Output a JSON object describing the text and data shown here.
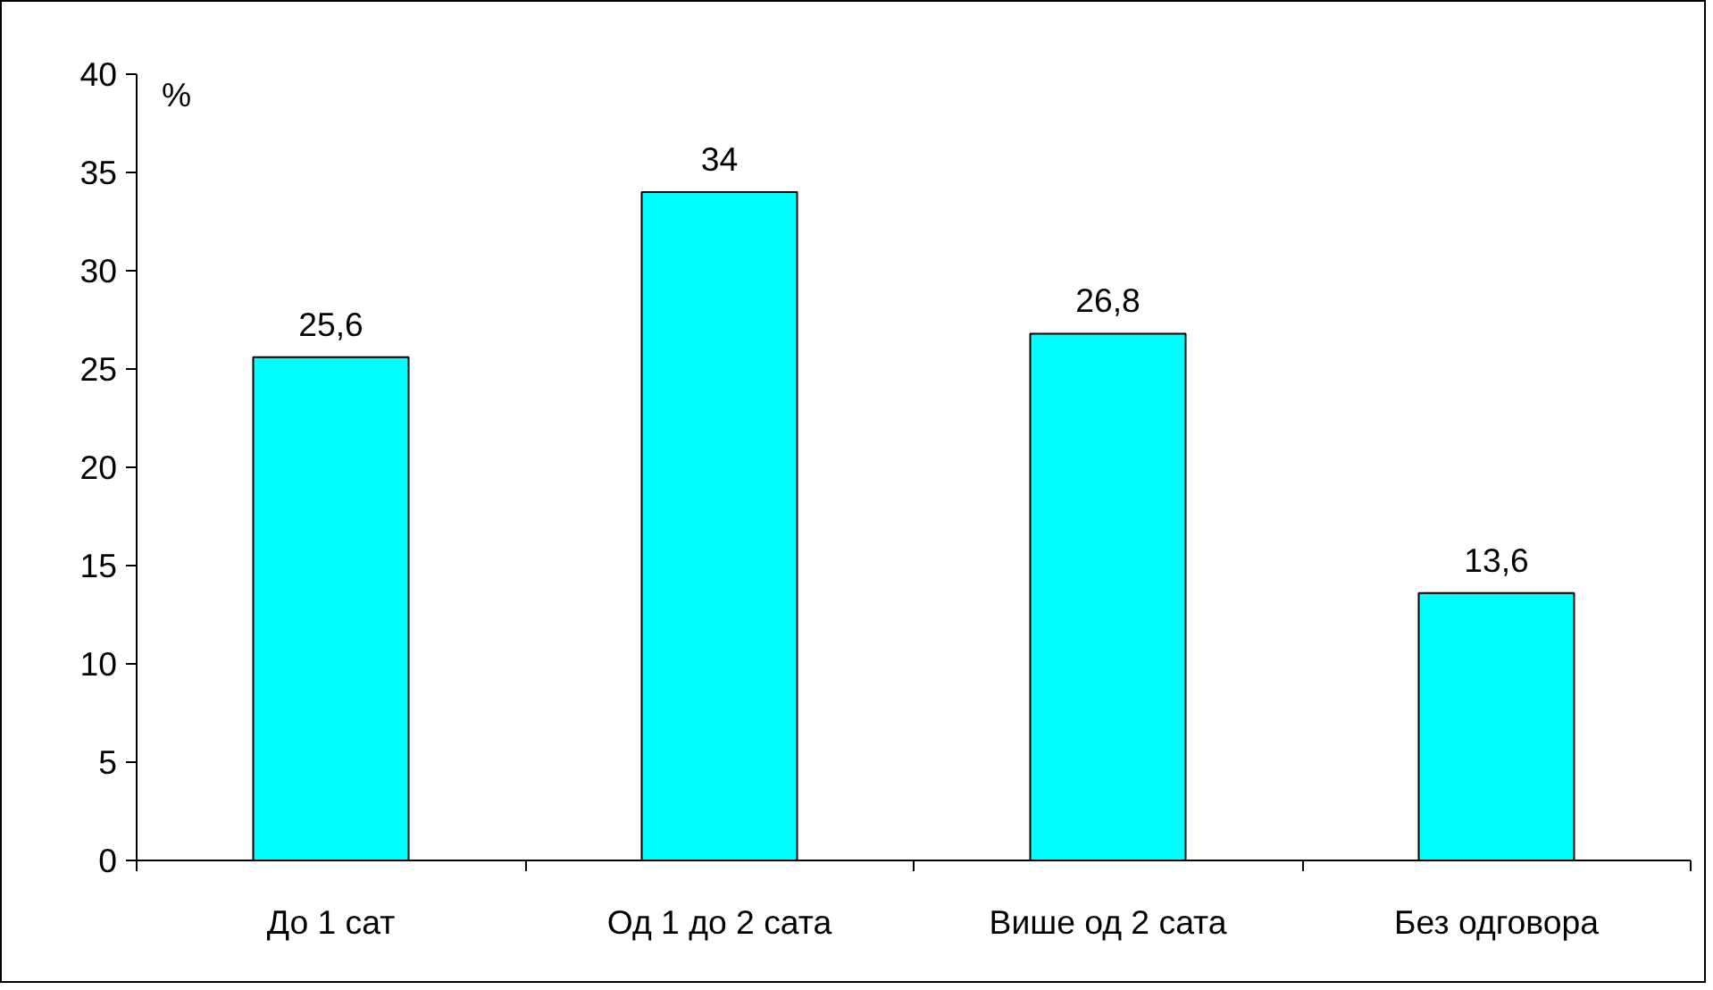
{
  "chart_data": {
    "type": "bar",
    "ylabel": "%",
    "categories": [
      "До 1 сат",
      "Од 1 до 2 сата",
      "Више од 2 сата",
      "Без одговора"
    ],
    "values": [
      25.6,
      34,
      26.8,
      13.6
    ],
    "value_labels": [
      "25,6",
      "34",
      "26,8",
      "13,6"
    ],
    "color": "#00ffff",
    "ylim": [
      0,
      40
    ],
    "yticks": [
      0,
      5,
      10,
      15,
      20,
      25,
      30,
      35,
      40
    ],
    "grid": false
  }
}
